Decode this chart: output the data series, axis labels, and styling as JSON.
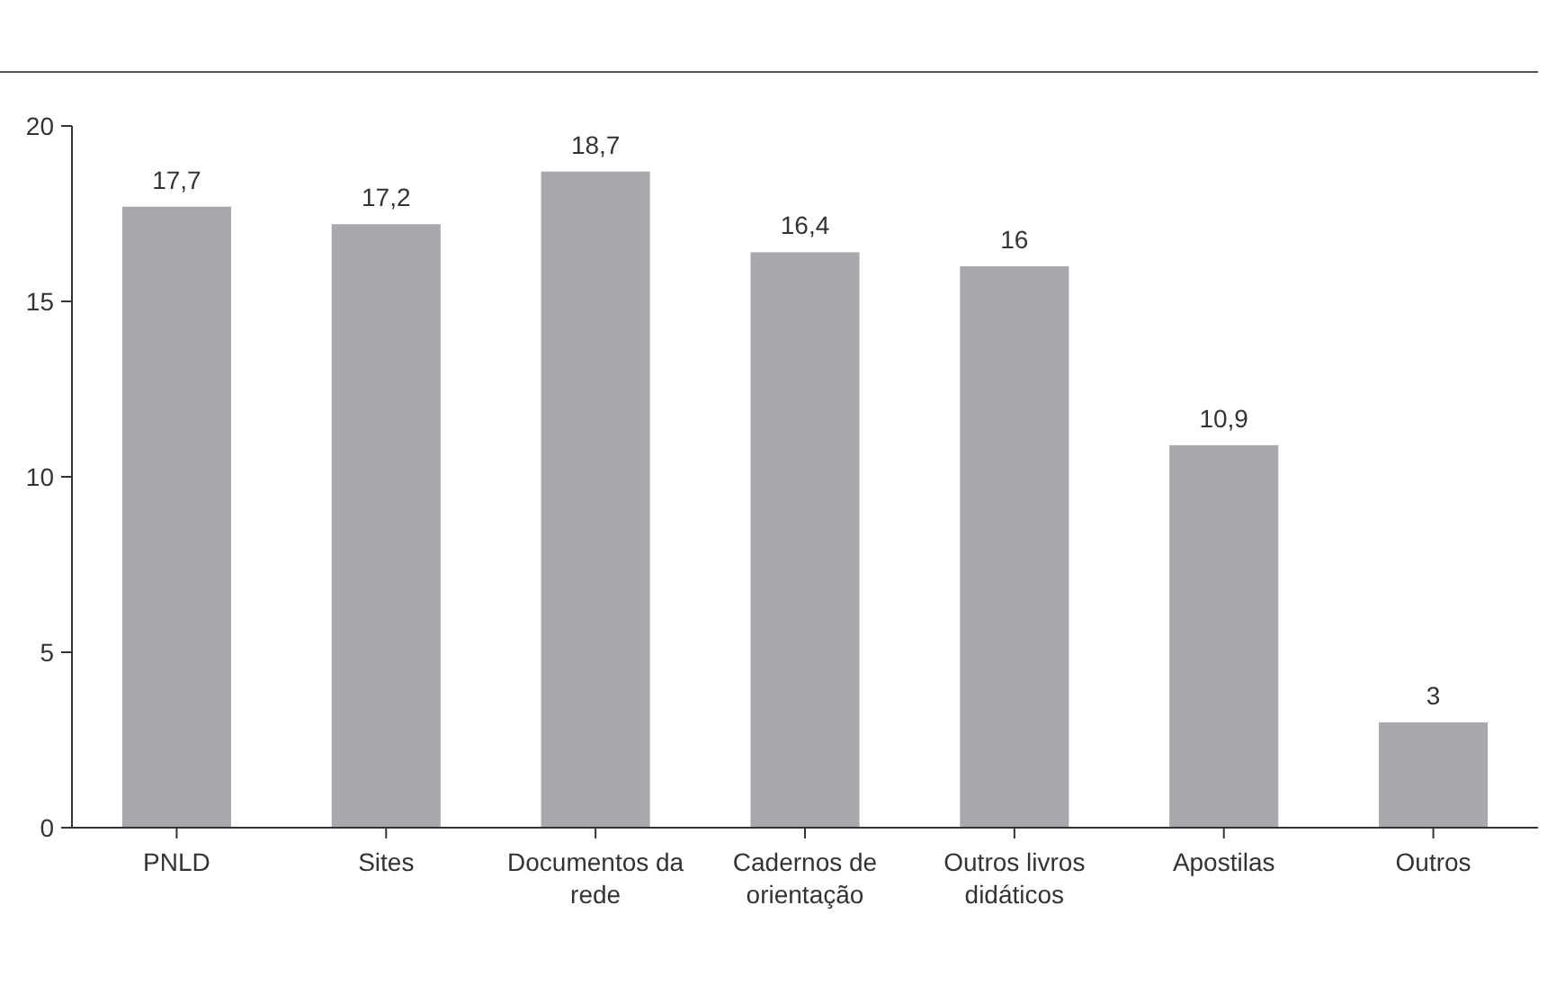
{
  "chart_data": {
    "type": "bar",
    "categories": [
      "PNLD",
      "Sites",
      "Documentos da rede",
      "Cadernos de orientação",
      "Outros livros didáticos",
      "Apostilas",
      "Outros"
    ],
    "values": [
      17.7,
      17.2,
      18.7,
      16.4,
      16,
      10.9,
      3
    ],
    "color": "#a7a9ac",
    "ylim": [
      0,
      20
    ],
    "yticks": [
      0,
      5,
      10,
      15,
      20
    ],
    "data_labels": true,
    "value_labels": [
      "17,7",
      "17,2",
      "18,7",
      "16,4",
      "16",
      "10,9",
      "3"
    ],
    "grid": false
  }
}
